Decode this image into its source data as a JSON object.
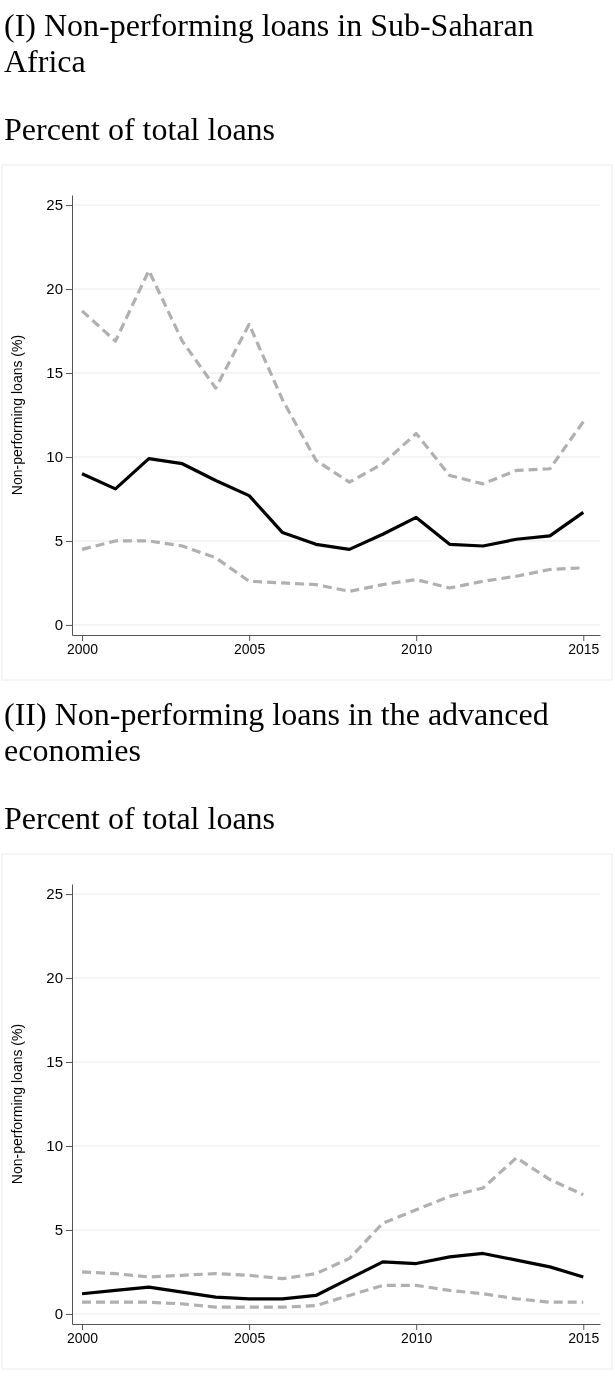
{
  "chart_data": [
    {
      "type": "line",
      "title": "(I) Non-performing loans in Sub-Saharan Africa",
      "subtitle": "Percent of total loans",
      "ylabel": "Non-performing loans (%)",
      "x": [
        2000,
        2001,
        2002,
        2003,
        2004,
        2005,
        2006,
        2007,
        2008,
        2009,
        2010,
        2011,
        2012,
        2013,
        2014,
        2015
      ],
      "xlim": [
        1999.7,
        2015.5
      ],
      "xticks": [
        2000,
        2005,
        2010,
        2015
      ],
      "ylim": [
        -0.6,
        25.6
      ],
      "yticks": [
        0,
        5,
        10,
        15,
        20,
        25
      ],
      "grid": "y",
      "series": [
        {
          "color": "#b0b0b0",
          "line_style": "dashed",
          "values": [
            18.7,
            16.9,
            21.1,
            16.9,
            14.1,
            17.9,
            13.4,
            9.8,
            8.5,
            9.6,
            11.4,
            8.9,
            8.4,
            9.2,
            9.3,
            12.1
          ]
        },
        {
          "color": "#000000",
          "line_style": "solid",
          "values": [
            9.0,
            8.1,
            9.9,
            9.6,
            8.6,
            7.7,
            5.5,
            4.8,
            4.5,
            5.4,
            6.4,
            4.8,
            4.7,
            5.1,
            5.3,
            6.7
          ]
        },
        {
          "color": "#b0b0b0",
          "line_style": "dashed",
          "values": [
            4.5,
            5.0,
            5.0,
            4.7,
            4.0,
            2.6,
            2.5,
            2.4,
            2.0,
            2.4,
            2.7,
            2.2,
            2.6,
            2.9,
            3.3,
            3.4
          ]
        }
      ]
    },
    {
      "type": "line",
      "title": "(II) Non-performing loans in the advanced economies",
      "subtitle": "Percent of total loans",
      "ylabel": "Non-performing loans (%)",
      "x": [
        2000,
        2001,
        2002,
        2003,
        2004,
        2005,
        2006,
        2007,
        2008,
        2009,
        2010,
        2011,
        2012,
        2013,
        2014,
        2015
      ],
      "xlim": [
        1999.7,
        2015.5
      ],
      "xticks": [
        2000,
        2005,
        2010,
        2015
      ],
      "ylim": [
        -0.6,
        25.6
      ],
      "yticks": [
        0,
        5,
        10,
        15,
        20,
        25
      ],
      "grid": "y",
      "series": [
        {
          "color": "#b0b0b0",
          "line_style": "dashed",
          "values": [
            2.5,
            2.4,
            2.2,
            2.3,
            2.4,
            2.3,
            2.1,
            2.4,
            3.3,
            5.4,
            6.2,
            7.0,
            7.5,
            9.3,
            8.0,
            7.1
          ]
        },
        {
          "color": "#000000",
          "line_style": "solid",
          "values": [
            1.2,
            1.4,
            1.6,
            1.3,
            1.0,
            0.9,
            0.9,
            1.1,
            2.1,
            3.1,
            3.0,
            3.4,
            3.6,
            3.2,
            2.8,
            2.2
          ]
        },
        {
          "color": "#b0b0b0",
          "line_style": "dashed",
          "values": [
            0.7,
            0.7,
            0.7,
            0.6,
            0.4,
            0.4,
            0.4,
            0.5,
            1.1,
            1.7,
            1.7,
            1.4,
            1.2,
            0.9,
            0.7,
            0.7
          ]
        }
      ]
    }
  ]
}
